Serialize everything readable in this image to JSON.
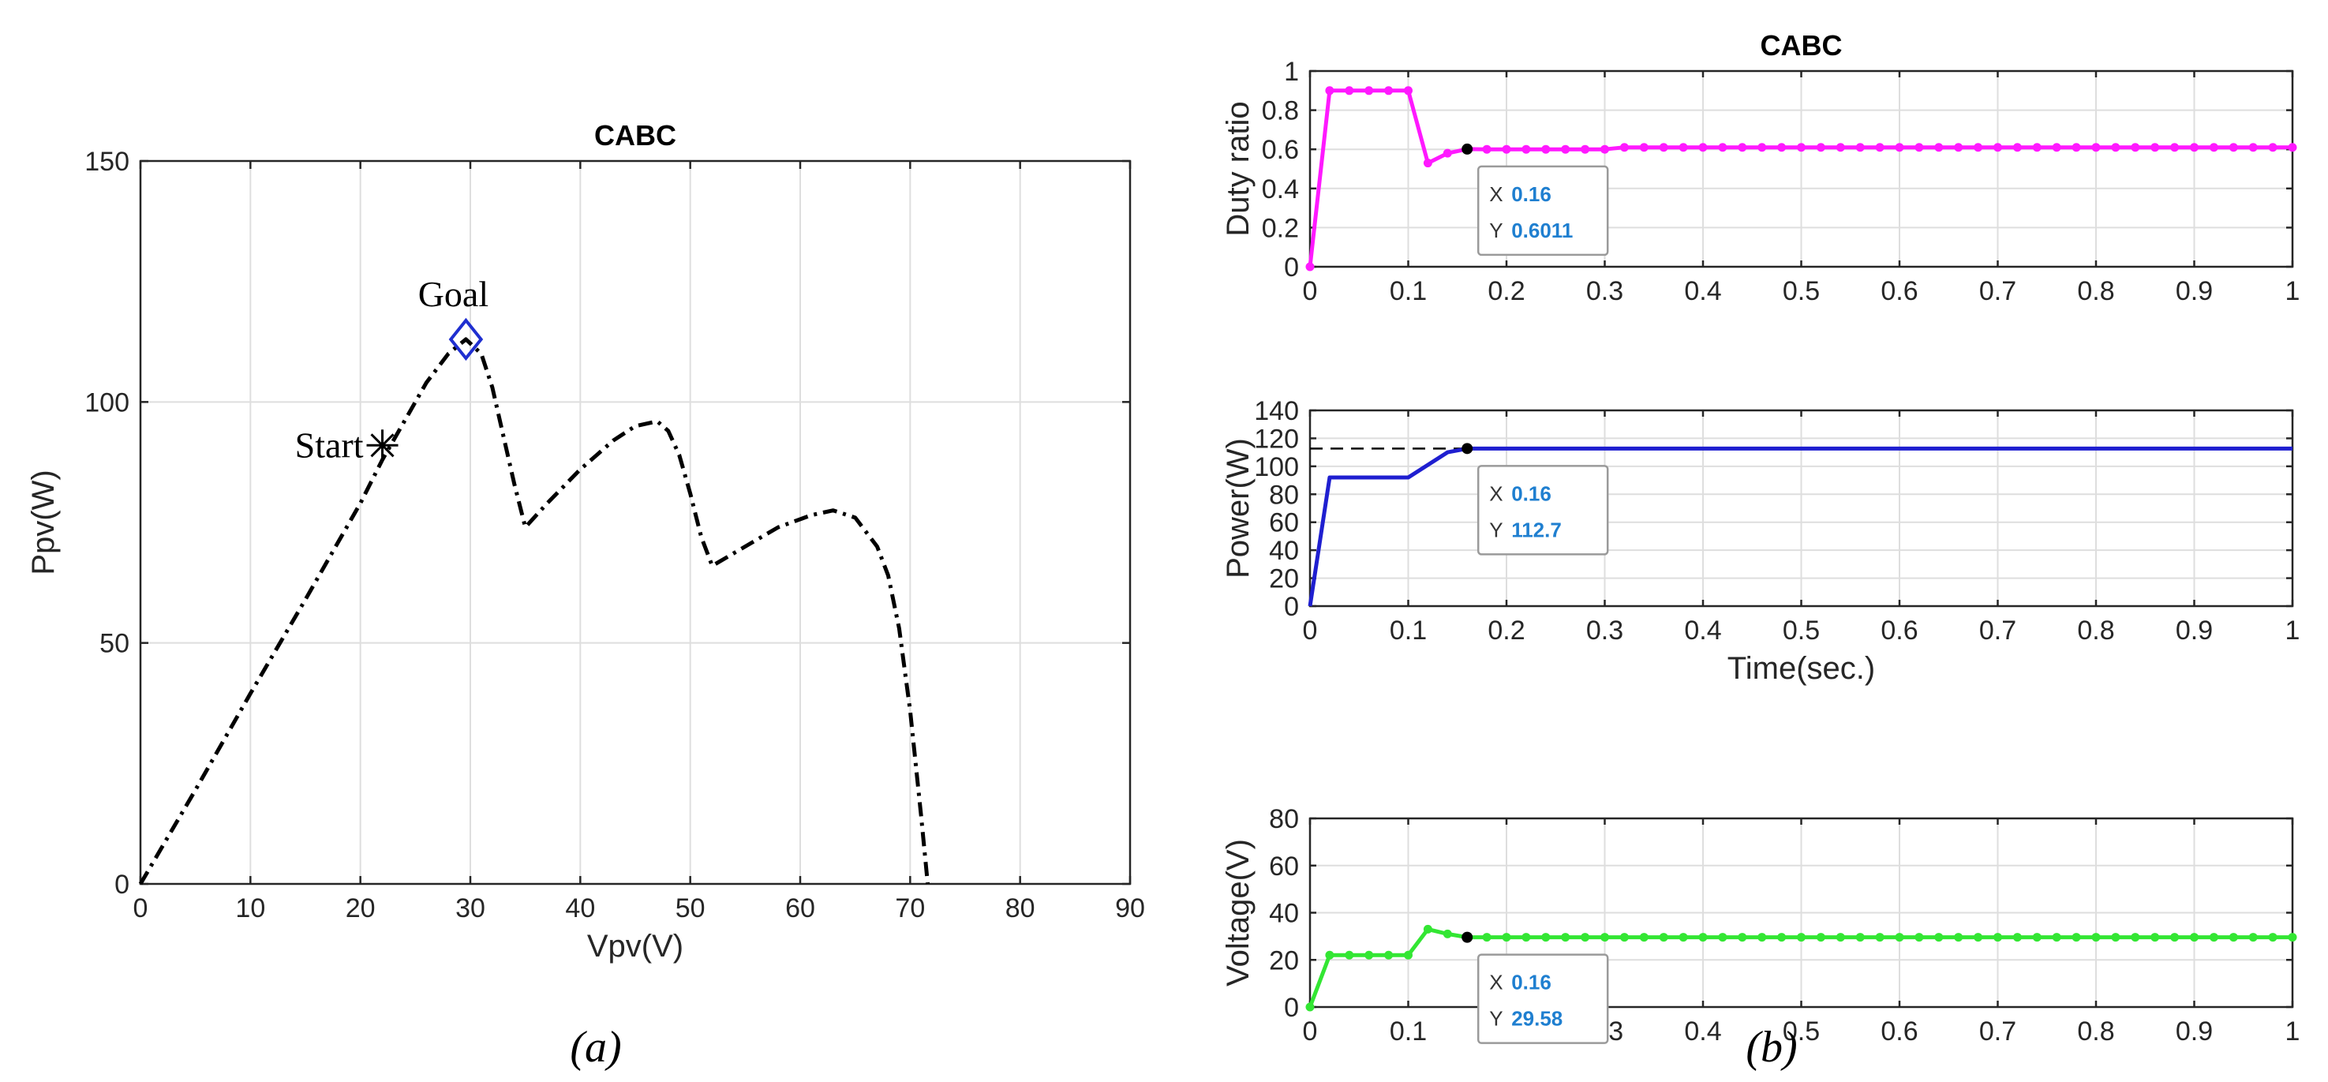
{
  "chart_data": [
    {
      "type": "line",
      "title": "CABC",
      "xlabel": "Vpv(V)",
      "ylabel": "Ppv(W)",
      "xlim": [
        0,
        90
      ],
      "ylim": [
        0,
        150
      ],
      "xticks": [
        0,
        10,
        20,
        30,
        40,
        50,
        60,
        70,
        80,
        90
      ],
      "yticks": [
        0,
        50,
        100,
        150
      ],
      "series": [
        {
          "name": "P-V curve",
          "color": "#000000",
          "x": [
            0,
            5,
            10,
            15,
            20,
            22,
            24,
            26,
            28,
            29.6,
            31,
            32,
            33,
            34,
            35,
            37,
            40,
            43,
            45,
            47,
            48,
            49,
            50,
            51,
            52,
            55,
            58,
            61,
            63,
            65,
            67,
            68,
            69,
            70,
            71,
            71.6
          ],
          "y": [
            0,
            19.5,
            39.5,
            59,
            79,
            88,
            96,
            104,
            110,
            113,
            110,
            103,
            93,
            83,
            74,
            79,
            86,
            92,
            95,
            96,
            94,
            89,
            81,
            72,
            66,
            70,
            74,
            76.5,
            77.5,
            76,
            70,
            64,
            53,
            36,
            14,
            0
          ]
        }
      ],
      "markers": [
        {
          "label": "Start",
          "x": 22,
          "y": 91,
          "symbol": "asterisk"
        },
        {
          "label": "Goal",
          "x": 29.6,
          "y": 113,
          "symbol": "diamond",
          "color": "#1f2fd0"
        }
      ],
      "caption": "(a)"
    },
    {
      "type": "line",
      "title": "CABC",
      "xlabel": "",
      "ylabel": "Duty ratio",
      "xlim": [
        0,
        1
      ],
      "ylim": [
        0,
        1
      ],
      "xticks": [
        "0",
        "0.1",
        "0.2",
        "0.3",
        "0.4",
        "0.5",
        "0.6",
        "0.7",
        "0.8",
        "0.9",
        "1"
      ],
      "yticks": [
        "0",
        "0.2",
        "0.4",
        "0.6",
        "0.8",
        "1"
      ],
      "series": [
        {
          "name": "Duty ratio",
          "color": "#ff19ff",
          "x": [
            0,
            0.02,
            0.04,
            0.06,
            0.08,
            0.1,
            0.12,
            0.14,
            0.16,
            0.18,
            0.2,
            0.22,
            0.24,
            0.26,
            0.28,
            0.3,
            0.32,
            0.34,
            0.36,
            0.38,
            0.4,
            0.42,
            0.44,
            0.46,
            0.48,
            0.5,
            0.52,
            0.54,
            0.56,
            0.58,
            0.6,
            0.62,
            0.64,
            0.66,
            0.68,
            0.7,
            0.72,
            0.74,
            0.76,
            0.78,
            0.8,
            0.82,
            0.84,
            0.86,
            0.88,
            0.9,
            0.92,
            0.94,
            0.96,
            0.98,
            1.0
          ],
          "y": [
            0,
            0.9,
            0.9,
            0.9,
            0.9,
            0.9,
            0.53,
            0.58,
            0.6011,
            0.6,
            0.6,
            0.6,
            0.6,
            0.6,
            0.6,
            0.6,
            0.61,
            0.61,
            0.61,
            0.61,
            0.61,
            0.61,
            0.61,
            0.61,
            0.61,
            0.61,
            0.61,
            0.61,
            0.61,
            0.61,
            0.61,
            0.61,
            0.61,
            0.61,
            0.61,
            0.61,
            0.61,
            0.61,
            0.61,
            0.61,
            0.61,
            0.61,
            0.61,
            0.61,
            0.61,
            0.61,
            0.61,
            0.61,
            0.61,
            0.61,
            0.61
          ]
        }
      ],
      "datatip": {
        "x_label": "X",
        "x_value": "0.16",
        "y_label": "Y",
        "y_value": "0.6011",
        "x": 0.16,
        "y": 0.6011
      }
    },
    {
      "type": "line",
      "title": "",
      "xlabel": "Time(sec.)",
      "ylabel": "Power(W)",
      "xlim": [
        0,
        1
      ],
      "ylim": [
        0,
        140
      ],
      "xticks": [
        "0",
        "0.1",
        "0.2",
        "0.3",
        "0.4",
        "0.5",
        "0.6",
        "0.7",
        "0.8",
        "0.9",
        "1"
      ],
      "yticks": [
        "0",
        "20",
        "40",
        "60",
        "80",
        "100",
        "120",
        "140"
      ],
      "series": [
        {
          "name": "Power",
          "color": "#1f1fd0",
          "x": [
            0,
            0.02,
            0.1,
            0.14,
            0.16,
            1.0
          ],
          "y": [
            0,
            92,
            92,
            110,
            112.7,
            112.7
          ]
        }
      ],
      "reference_line": {
        "y": 112.7,
        "x_end": 0.16
      },
      "datatip": {
        "x_label": "X",
        "x_value": "0.16",
        "y_label": "Y",
        "y_value": "112.7",
        "x": 0.16,
        "y": 112.7
      }
    },
    {
      "type": "line",
      "title": "",
      "xlabel": "",
      "ylabel": "Voltage(V)",
      "xlim": [
        0,
        1
      ],
      "ylim": [
        0,
        80
      ],
      "xticks": [
        "0",
        "0.1",
        "0.2",
        "0.3",
        "0.4",
        "0.5",
        "0.6",
        "0.7",
        "0.8",
        "0.9",
        "1"
      ],
      "yticks": [
        "0",
        "20",
        "40",
        "60",
        "80"
      ],
      "series": [
        {
          "name": "Voltage",
          "color": "#33e633",
          "x": [
            0,
            0.02,
            0.04,
            0.06,
            0.08,
            0.1,
            0.12,
            0.14,
            0.16,
            0.18,
            0.2,
            0.22,
            0.24,
            0.26,
            0.28,
            0.3,
            0.32,
            0.34,
            0.36,
            0.38,
            0.4,
            0.42,
            0.44,
            0.46,
            0.48,
            0.5,
            0.52,
            0.54,
            0.56,
            0.58,
            0.6,
            0.62,
            0.64,
            0.66,
            0.68,
            0.7,
            0.72,
            0.74,
            0.76,
            0.78,
            0.8,
            0.82,
            0.84,
            0.86,
            0.88,
            0.9,
            0.92,
            0.94,
            0.96,
            0.98,
            1.0
          ],
          "y": [
            0,
            22,
            22,
            22,
            22,
            22,
            33,
            31,
            29.58,
            29.6,
            29.6,
            29.6,
            29.6,
            29.6,
            29.6,
            29.6,
            29.6,
            29.6,
            29.6,
            29.6,
            29.6,
            29.6,
            29.6,
            29.6,
            29.6,
            29.6,
            29.6,
            29.6,
            29.6,
            29.6,
            29.6,
            29.6,
            29.6,
            29.6,
            29.6,
            29.6,
            29.6,
            29.6,
            29.6,
            29.6,
            29.6,
            29.6,
            29.6,
            29.6,
            29.6,
            29.6,
            29.6,
            29.6,
            29.6,
            29.6,
            29.6
          ]
        }
      ],
      "datatip": {
        "x_label": "X",
        "x_value": "0.16",
        "y_label": "Y",
        "y_value": "29.58",
        "x": 0.16,
        "y": 29.58
      },
      "caption": "(b)"
    }
  ]
}
